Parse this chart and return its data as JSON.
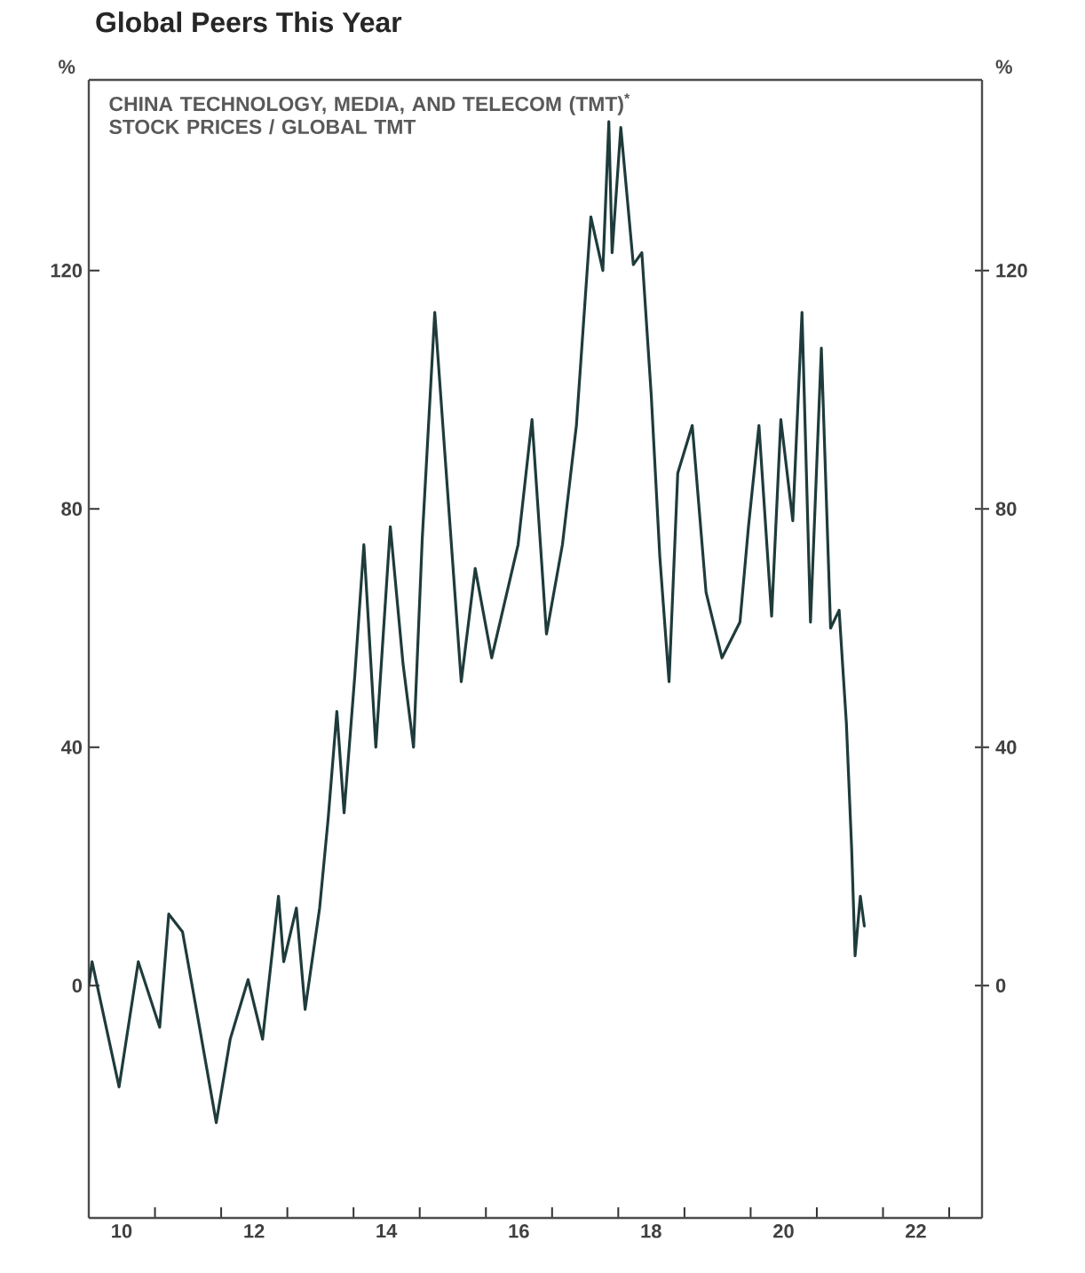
{
  "chart_data": {
    "type": "line",
    "title": "Global Peers This Year",
    "ylabel": "%",
    "y2label": "%",
    "annotations": [
      "CHINA TECHNOLOGY, MEDIA, AND TELECOM (TMT)$^{*}$ STOCK PRICES / GLOBAL TMT"
    ],
    "xlim": [
      "2010-01-01",
      "2023-07-01"
    ],
    "xticks": [
      {
        "value": "2010-01-01",
        "label": null
      },
      {
        "value": "2011-01-01",
        "label": null
      },
      {
        "value": "2012-01-01",
        "label": null
      },
      {
        "value": "2013-01-01",
        "label": null
      },
      {
        "value": "2014-01-01",
        "label": null
      },
      {
        "value": "2015-01-01",
        "label": null
      },
      {
        "value": "2016-01-01",
        "label": null
      },
      {
        "value": "2017-01-01",
        "label": null
      },
      {
        "value": "2018-01-01",
        "label": null
      },
      {
        "value": "2019-01-01",
        "label": null
      },
      {
        "value": "2020-01-01",
        "label": null
      },
      {
        "value": "2021-01-01",
        "label": null
      },
      {
        "value": "2022-01-01",
        "label": null
      },
      {
        "value": "2023-01-01",
        "label": null
      },
      {
        "value": "2010-07-01",
        "label": "10"
      },
      {
        "value": "2012-07-01",
        "label": "12"
      },
      {
        "value": "2014-07-01",
        "label": "14"
      },
      {
        "value": "2016-07-01",
        "label": "16"
      },
      {
        "value": "2018-07-01",
        "label": "18"
      },
      {
        "value": "2020-07-01",
        "label": "20"
      },
      {
        "value": "2022-07-01",
        "label": "22"
      }
    ],
    "ylim": [
      -39,
      152
    ],
    "yticks": [
      0,
      40,
      80,
      120
    ],
    "y2lim": [
      -39,
      152
    ],
    "y2ticks": [
      0,
      40,
      80,
      120
    ],
    "series": [
      {
        "color": "#1f3b3b",
        "x": [
          "2010-01-01",
          "2010-01-19",
          "2010-06-17",
          "2010-10-01",
          "2011-01-27",
          "2011-03-18",
          "2011-06-02",
          "2011-08-29",
          "2011-12-05",
          "2012-02-20",
          "2012-05-29",
          "2012-08-17",
          "2012-11-13",
          "2012-12-12",
          "2013-02-20",
          "2013-04-09",
          "2013-06-28",
          "2013-08-14",
          "2013-10-01",
          "2013-11-10",
          "2014-01-08",
          "2014-02-27",
          "2014-05-04",
          "2014-07-23",
          "2014-10-01",
          "2014-11-28",
          "2015-01-15",
          "2015-03-25",
          "2015-05-11",
          "2015-08-18",
          "2015-11-03",
          "2016-02-02",
          "2016-06-27",
          "2016-09-12",
          "2016-12-01",
          "2017-02-27",
          "2017-05-15",
          "2017-08-03",
          "2017-10-08",
          "2017-11-10",
          "2017-11-28",
          "2018-01-15",
          "2018-03-25",
          "2018-05-11",
          "2018-07-02",
          "2018-08-18",
          "2018-10-08",
          "2018-11-25",
          "2019-02-13",
          "2019-04-30",
          "2019-07-27",
          "2019-11-03",
          "2019-12-20",
          "2020-02-16",
          "2020-04-26",
          "2020-06-16",
          "2020-08-21",
          "2020-10-11",
          "2020-11-27",
          "2021-01-26",
          "2021-03-18",
          "2021-05-04",
          "2021-06-13",
          "2021-07-12",
          "2021-07-31",
          "2021-08-29",
          "2021-09-20"
        ],
        "values": [
          0,
          4,
          -17,
          4,
          -7,
          12,
          9,
          -6,
          -23,
          -9,
          1,
          -9,
          15,
          4,
          13,
          -4,
          13,
          28,
          46,
          29,
          52,
          74,
          40,
          77,
          54,
          40,
          75,
          113,
          93,
          51,
          70,
          55,
          74,
          95,
          59,
          74,
          94,
          129,
          120,
          145,
          123,
          144,
          121,
          123,
          99,
          72,
          51,
          86,
          94,
          66,
          55,
          61,
          77,
          94,
          62,
          95,
          78,
          113,
          61,
          107,
          60,
          63,
          44,
          23,
          5,
          15,
          10
        ]
      }
    ]
  }
}
